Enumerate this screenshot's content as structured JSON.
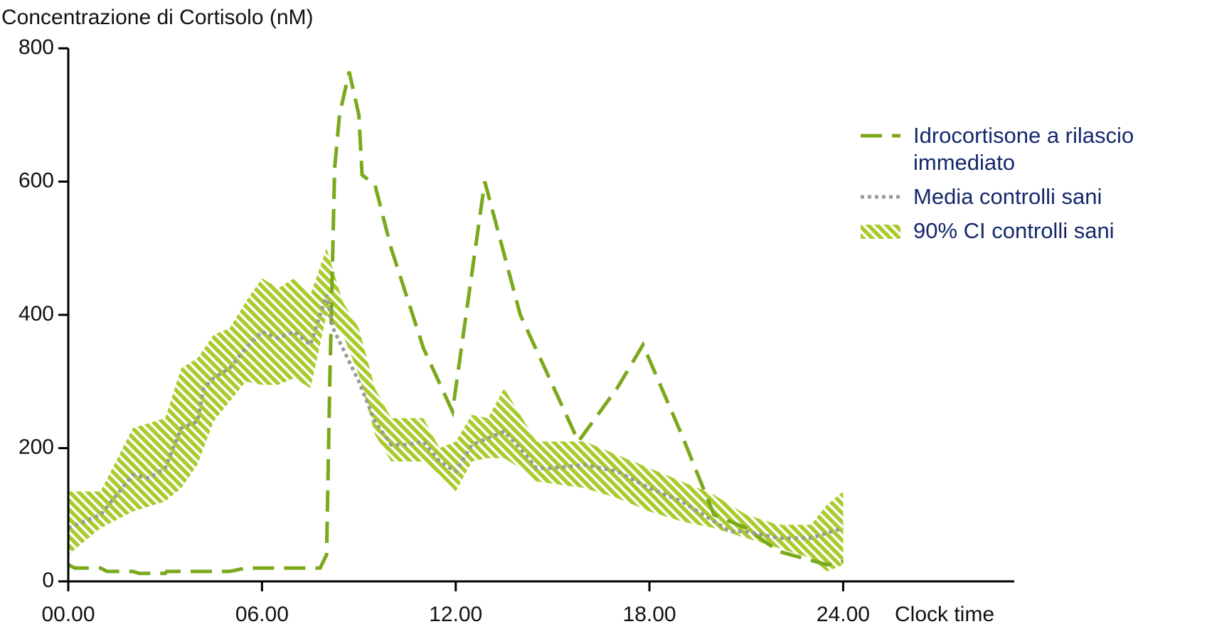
{
  "chart_data": {
    "type": "line",
    "ylabel": "Concentrazione di Cortisolo (nM)",
    "xlabel": "Clock time",
    "xlim": [
      0,
      29.3
    ],
    "ylim": [
      0,
      800
    ],
    "xticks": [
      {
        "value": 0,
        "label": "00.00"
      },
      {
        "value": 6,
        "label": "06.00"
      },
      {
        "value": 12,
        "label": "12.00"
      },
      {
        "value": 18,
        "label": "18.00"
      },
      {
        "value": 24,
        "label": "24.00"
      }
    ],
    "yticks": [
      0,
      200,
      400,
      600,
      800
    ],
    "series": [
      {
        "name": "Idrocortisone a rilascio immediato",
        "color": "#7aa91c",
        "style": "dashed",
        "x": [
          0,
          0.2,
          1,
          1.2,
          2,
          2.2,
          3,
          3.05,
          5,
          5.5,
          7.8,
          8,
          8.1,
          8.25,
          8.4,
          8.7,
          9,
          9.1,
          9.5,
          10,
          11,
          11.9,
          12.9,
          14,
          15.8,
          17,
          17.8,
          19,
          20,
          21,
          22,
          23.5,
          24
        ],
        "values": [
          25,
          20,
          20,
          15,
          15,
          12,
          12,
          15,
          15,
          20,
          20,
          40,
          300,
          620,
          700,
          765,
          700,
          610,
          595,
          500,
          350,
          255,
          600,
          400,
          210,
          290,
          355,
          220,
          100,
          80,
          45,
          25,
          30
        ]
      },
      {
        "name": "Media controlli sani",
        "color": "#9a9a9a",
        "style": "dotted",
        "x": [
          0,
          1,
          2,
          2.5,
          3,
          3.5,
          4,
          4.2,
          4.5,
          5,
          5.5,
          6,
          6.5,
          7,
          7.5,
          8,
          8.2,
          8.5,
          9,
          9.5,
          10,
          10.5,
          11,
          11.5,
          12,
          12.5,
          13,
          13.5,
          14,
          14.5,
          15,
          16,
          17,
          18,
          19,
          20,
          20.5,
          21,
          22,
          23,
          24
        ],
        "values": [
          80,
          100,
          160,
          155,
          170,
          230,
          240,
          290,
          305,
          320,
          350,
          375,
          365,
          375,
          355,
          430,
          380,
          350,
          300,
          240,
          205,
          205,
          210,
          180,
          165,
          205,
          215,
          225,
          200,
          170,
          170,
          175,
          165,
          140,
          120,
          90,
          75,
          75,
          65,
          65,
          80
        ]
      },
      {
        "name": "90% CI controlli sani",
        "color": "#a8cc2e",
        "style": "band",
        "x": [
          0,
          1,
          2,
          3,
          3.5,
          4,
          4.5,
          5,
          5.5,
          6,
          6.5,
          7,
          7.5,
          8,
          8.5,
          9,
          9.5,
          10,
          11,
          11.5,
          12,
          12.5,
          13,
          13.5,
          14,
          14.5,
          16,
          17,
          18,
          19,
          20,
          21,
          22,
          23,
          23.5,
          24
        ],
        "upper": [
          135,
          135,
          230,
          245,
          320,
          335,
          370,
          380,
          420,
          455,
          440,
          455,
          430,
          500,
          420,
          380,
          290,
          245,
          245,
          200,
          210,
          250,
          245,
          290,
          250,
          210,
          210,
          190,
          170,
          150,
          130,
          100,
          85,
          85,
          115,
          135
        ],
        "lower": [
          40,
          80,
          105,
          120,
          140,
          175,
          240,
          270,
          300,
          295,
          295,
          305,
          290,
          400,
          370,
          310,
          220,
          180,
          180,
          160,
          135,
          180,
          185,
          185,
          170,
          150,
          140,
          125,
          105,
          90,
          80,
          65,
          50,
          35,
          15,
          25
        ]
      }
    ]
  }
}
